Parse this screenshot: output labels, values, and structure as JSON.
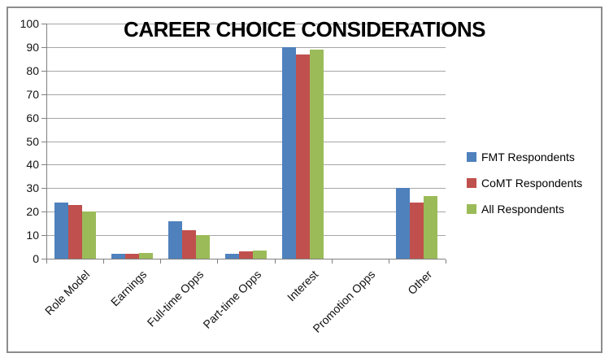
{
  "chart_data": {
    "type": "bar",
    "title": "CAREER CHOICE CONSIDERATIONS",
    "categories": [
      "Role Model",
      "Earnings",
      "Full-time Opps",
      "Part-time Opps",
      "Interest",
      "Promotion Opps",
      "Other"
    ],
    "series": [
      {
        "name": "FMT Respondents",
        "color": "#4F81BD",
        "values": [
          24,
          2,
          16,
          2,
          90,
          0,
          30
        ]
      },
      {
        "name": "CoMT Respondents",
        "color": "#C0504D",
        "values": [
          23,
          2,
          12,
          3,
          87,
          0,
          24
        ]
      },
      {
        "name": "All Respondents",
        "color": "#9BBB59",
        "values": [
          20,
          2.5,
          10,
          3.5,
          89,
          0,
          26.5
        ]
      }
    ],
    "xlabel": "",
    "ylabel": "",
    "ylim": [
      0,
      100
    ],
    "ytick_step": 10,
    "grid": true,
    "legend_position": "right",
    "colors": {
      "gridline": "#a6a6a6",
      "axis": "#808080",
      "chart_border": "#8c8c8c",
      "background": "#ffffff",
      "text": "#111111"
    }
  }
}
